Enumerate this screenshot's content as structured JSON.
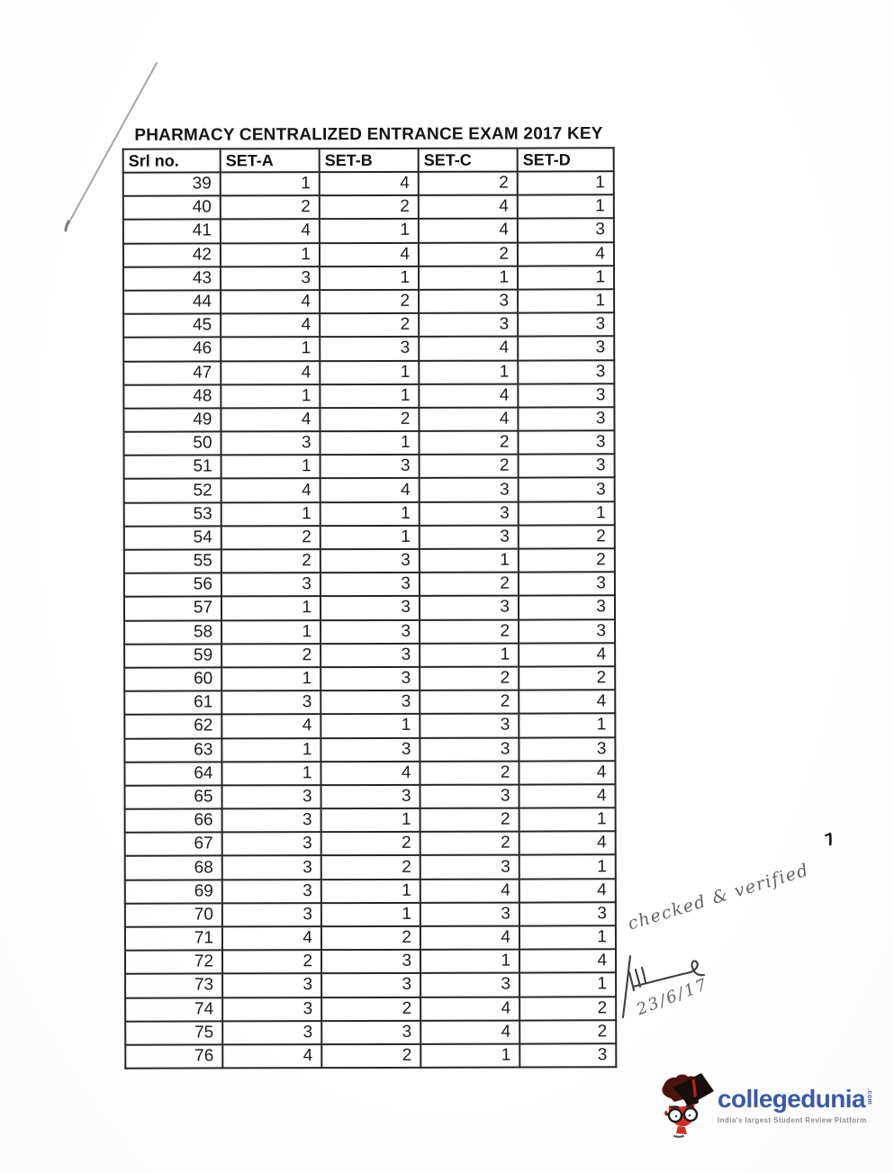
{
  "document": {
    "title": "PHARMACY CENTRALIZED ENTRANCE EXAM 2017 KEY"
  },
  "table": {
    "columns": [
      "Srl no.",
      "SET-A",
      "SET-B",
      "SET-C",
      "SET-D"
    ],
    "rows": [
      [
        39,
        1,
        4,
        2,
        1
      ],
      [
        40,
        2,
        2,
        4,
        1
      ],
      [
        41,
        4,
        1,
        4,
        3
      ],
      [
        42,
        1,
        4,
        2,
        4
      ],
      [
        43,
        3,
        1,
        1,
        1
      ],
      [
        44,
        4,
        2,
        3,
        1
      ],
      [
        45,
        4,
        2,
        3,
        3
      ],
      [
        46,
        1,
        3,
        4,
        3
      ],
      [
        47,
        4,
        1,
        1,
        3
      ],
      [
        48,
        1,
        1,
        4,
        3
      ],
      [
        49,
        4,
        2,
        4,
        3
      ],
      [
        50,
        3,
        1,
        2,
        3
      ],
      [
        51,
        1,
        3,
        2,
        3
      ],
      [
        52,
        4,
        4,
        3,
        3
      ],
      [
        53,
        1,
        1,
        3,
        1
      ],
      [
        54,
        2,
        1,
        3,
        2
      ],
      [
        55,
        2,
        3,
        1,
        2
      ],
      [
        56,
        3,
        3,
        2,
        3
      ],
      [
        57,
        1,
        3,
        3,
        3
      ],
      [
        58,
        1,
        3,
        2,
        3
      ],
      [
        59,
        2,
        3,
        1,
        4
      ],
      [
        60,
        1,
        3,
        2,
        2
      ],
      [
        61,
        3,
        3,
        2,
        4
      ],
      [
        62,
        4,
        1,
        3,
        1
      ],
      [
        63,
        1,
        3,
        3,
        3
      ],
      [
        64,
        1,
        4,
        2,
        4
      ],
      [
        65,
        3,
        3,
        3,
        4
      ],
      [
        66,
        3,
        1,
        2,
        1
      ],
      [
        67,
        3,
        2,
        2,
        4
      ],
      [
        68,
        3,
        2,
        3,
        1
      ],
      [
        69,
        3,
        1,
        4,
        4
      ],
      [
        70,
        3,
        1,
        3,
        3
      ],
      [
        71,
        4,
        2,
        4,
        1
      ],
      [
        72,
        2,
        3,
        1,
        4
      ],
      [
        73,
        3,
        3,
        3,
        1
      ],
      [
        74,
        3,
        2,
        4,
        2
      ],
      [
        75,
        3,
        3,
        4,
        2
      ],
      [
        76,
        4,
        2,
        1,
        3
      ]
    ]
  },
  "handwriting": {
    "note": "checked & verified",
    "date": "23/6/17"
  },
  "logo": {
    "brand": "collegedunia",
    "suffix": ".com",
    "tagline": "India's largest Student Review Platform",
    "colors": {
      "brand_blue": "#3a5ba8",
      "tagline_gray": "#8d8d8d",
      "mascot_red": "#d03026",
      "cap_black": "#15100c",
      "hair_maroon": "#4a150e"
    }
  }
}
